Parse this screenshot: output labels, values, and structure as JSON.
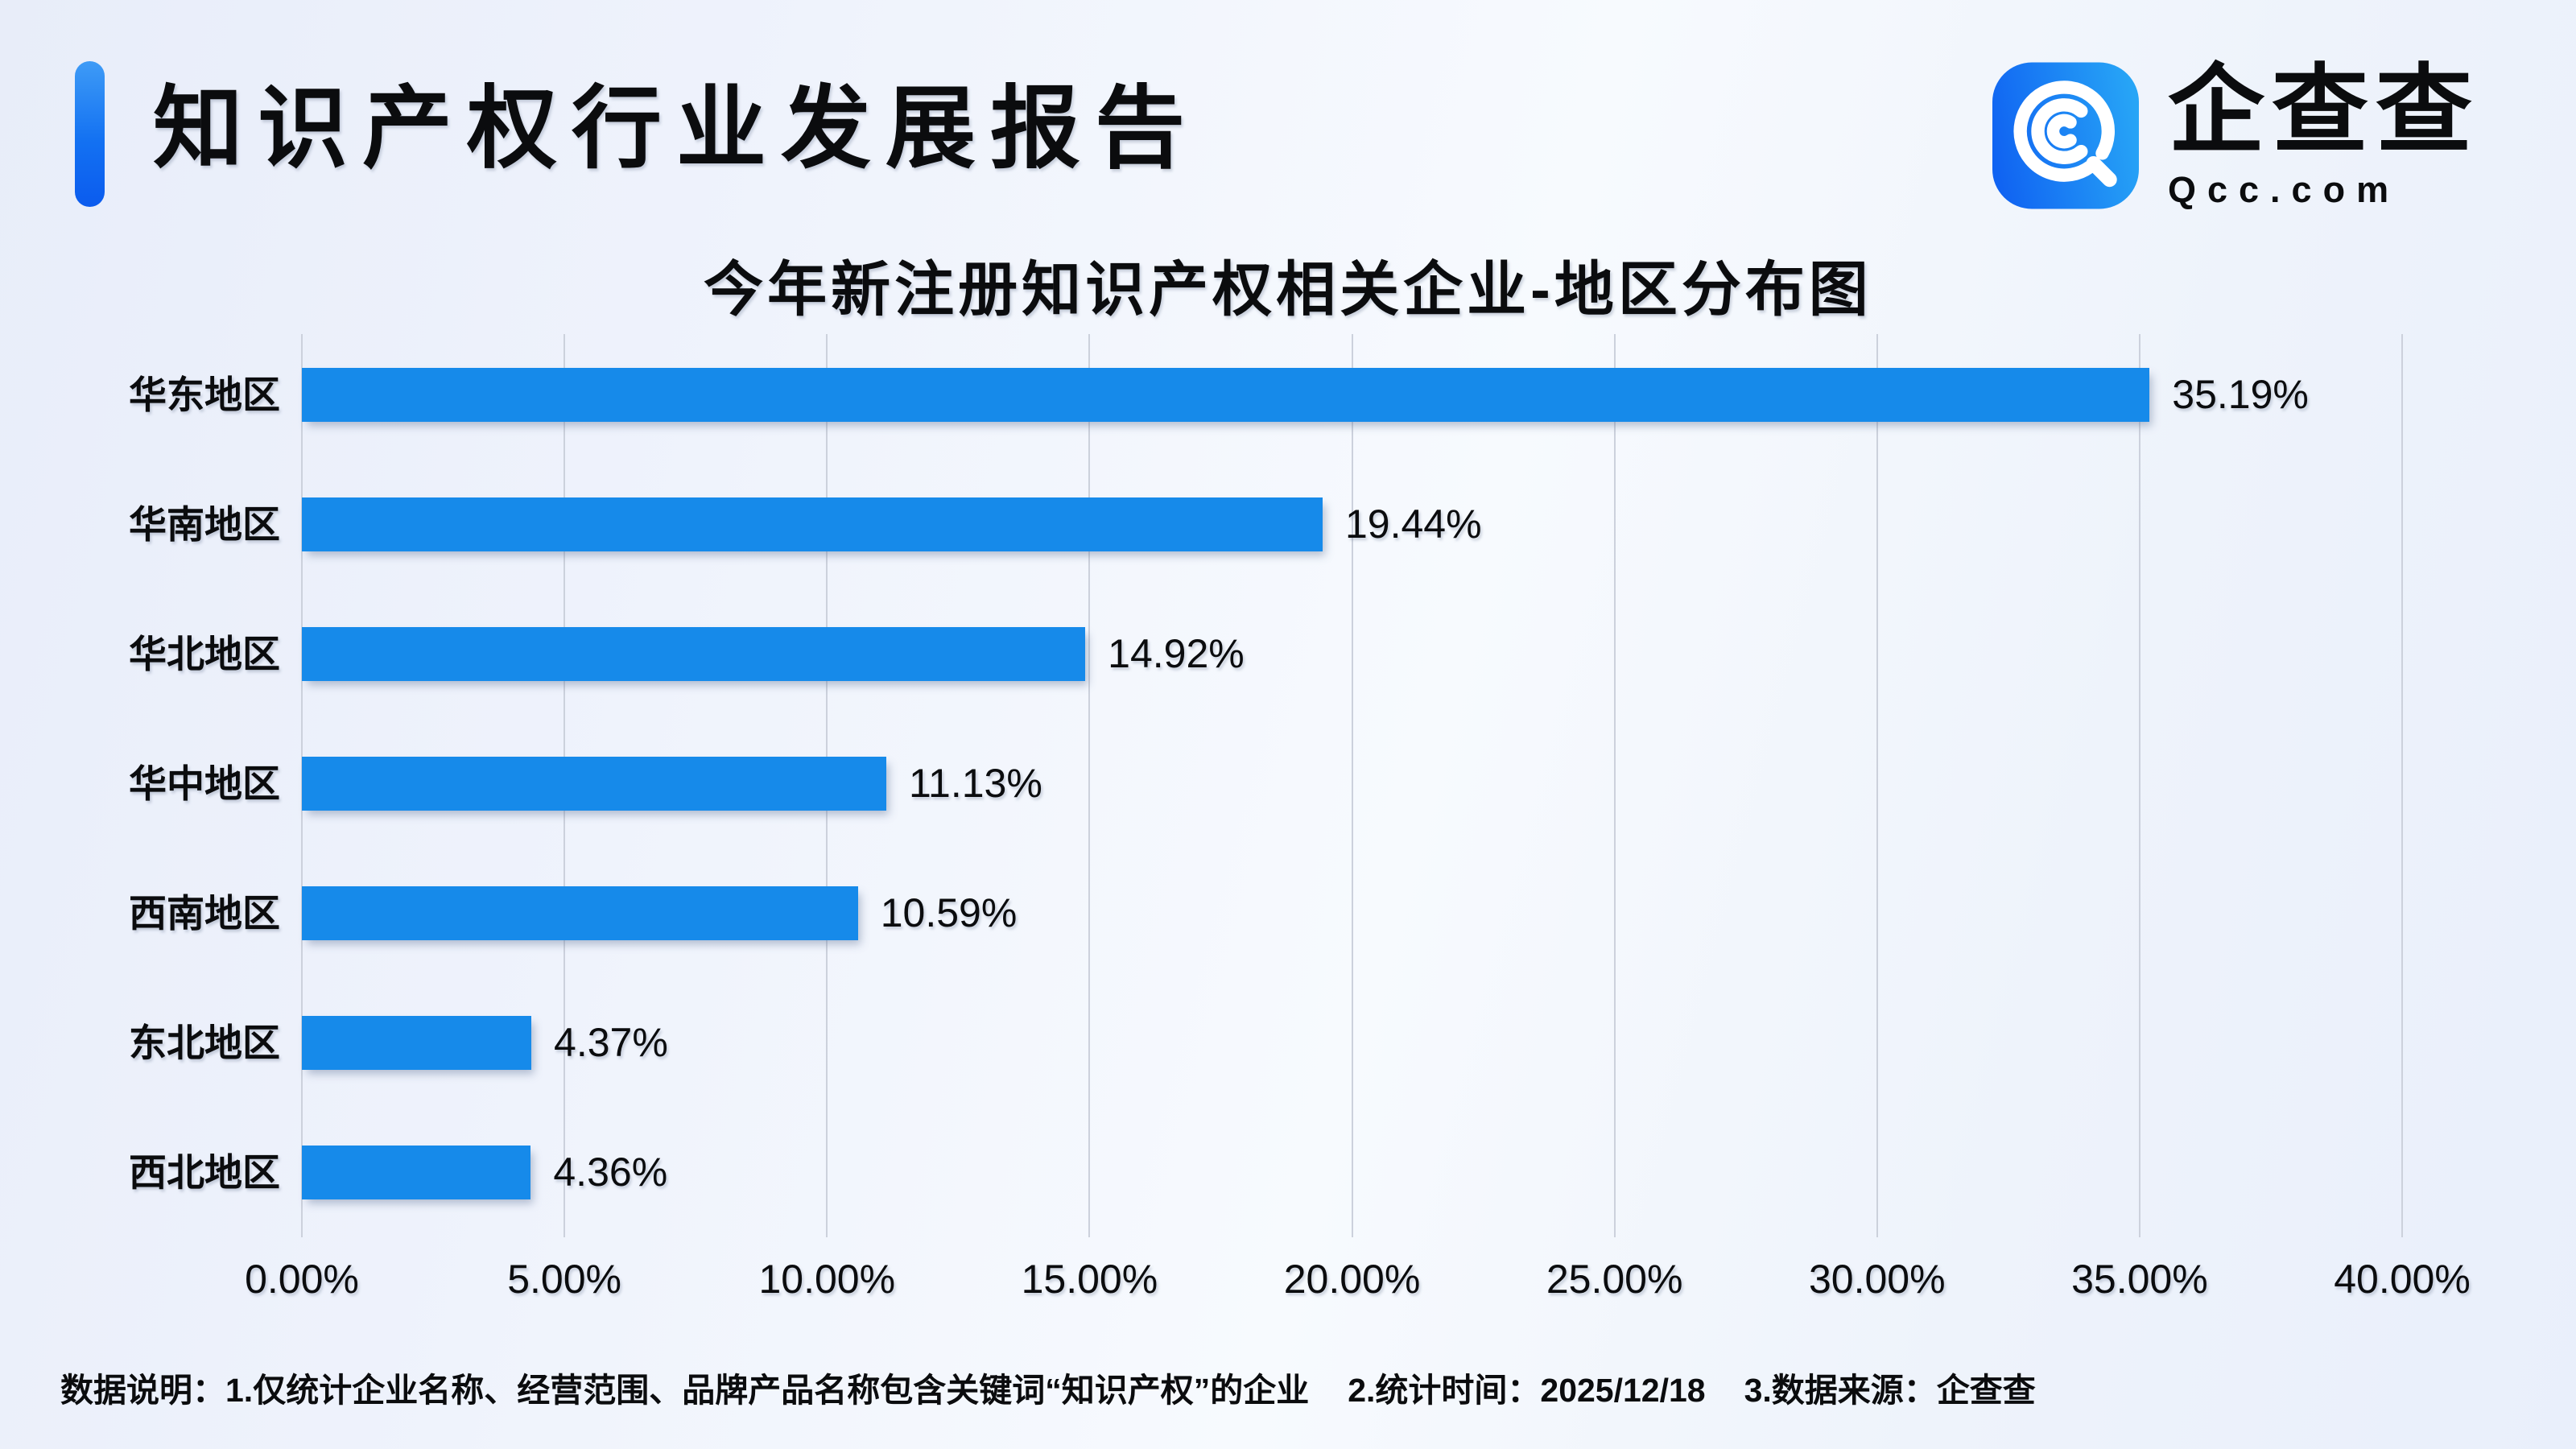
{
  "header": {
    "title": "知识产权行业发展报告"
  },
  "logo": {
    "brand": "企查查",
    "domain": "Qcc.com",
    "icon": "qcc-magnifier-icon",
    "gradient_start": "#1063f2",
    "gradient_end": "#27a5f6"
  },
  "chart_data": {
    "type": "bar",
    "orientation": "horizontal",
    "title": "今年新注册知识产权相关企业-地区分布图",
    "categories": [
      "华东地区",
      "华南地区",
      "华北地区",
      "华中地区",
      "西南地区",
      "东北地区",
      "西北地区"
    ],
    "values": [
      35.19,
      19.44,
      14.92,
      11.13,
      10.59,
      4.37,
      4.36
    ],
    "value_labels": [
      "35.19%",
      "19.44%",
      "14.92%",
      "11.13%",
      "10.59%",
      "4.37%",
      "4.36%"
    ],
    "x_ticks": [
      "0.00%",
      "5.00%",
      "10.00%",
      "15.00%",
      "20.00%",
      "25.00%",
      "30.00%",
      "35.00%",
      "40.00%"
    ],
    "xlim": [
      0,
      40
    ],
    "xlabel": "",
    "ylabel": "",
    "grid": "vertical",
    "legend_position": "none",
    "bar_color": "#168aea"
  },
  "footer": {
    "notes": [
      "数据说明：1.仅统计企业名称、经营范围、品牌产品名称包含关键词“知识产权”的企业",
      "2.统计时间：2025/12/18",
      "3.数据来源：企查查"
    ]
  }
}
